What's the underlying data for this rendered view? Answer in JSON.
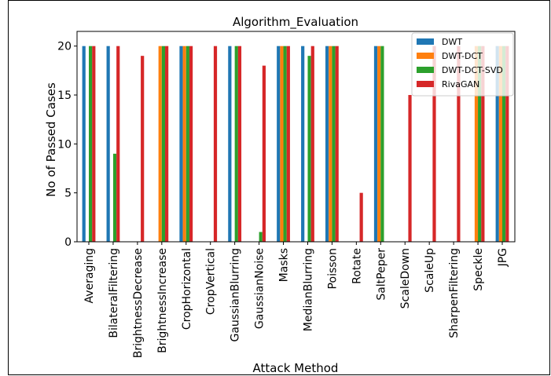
{
  "chart_data": {
    "type": "bar",
    "title": "Algorithm_Evaluation",
    "xlabel": "Attack Method",
    "ylabel": "No of Passed Cases",
    "ylim": [
      0,
      21.5
    ],
    "yticks": [
      0,
      5,
      10,
      15,
      20
    ],
    "grid": false,
    "legend_placement": "top-right",
    "categories": [
      "Averaging",
      "BilateralFiltering",
      "BrightnessDecrease",
      "BrightnessIncrease",
      "CropHorizontal",
      "CropVertical",
      "GaussianBlurring",
      "GaussianNoise",
      "Masks",
      "MedianBlurring",
      "Poisson",
      "Rotate",
      "SaltPeper",
      "ScaleDown",
      "ScaleUp",
      "SharpenFiltering",
      "Speckle",
      "JPG"
    ],
    "series": [
      {
        "name": "DWT",
        "color": "#1f77b4",
        "values": [
          20,
          20,
          0,
          0,
          20,
          0,
          20,
          0,
          20,
          20,
          20,
          0,
          20,
          0,
          0,
          0,
          0,
          20
        ]
      },
      {
        "name": "DWT-DCT",
        "color": "#ff7f0e",
        "values": [
          0,
          0,
          0,
          20,
          20,
          0,
          0,
          0,
          20,
          0,
          20,
          0,
          20,
          0,
          0,
          0,
          20,
          20
        ]
      },
      {
        "name": "DWT-DCT-SVD",
        "color": "#2ca02c",
        "values": [
          20,
          9,
          0,
          20,
          20,
          0,
          20,
          1,
          20,
          19,
          20,
          0,
          20,
          0,
          0,
          0,
          20,
          20
        ]
      },
      {
        "name": "RivaGAN",
        "color": "#d62728",
        "values": [
          20,
          20,
          19,
          20,
          20,
          20,
          20,
          18,
          20,
          20,
          20,
          5,
          0,
          15,
          20,
          20,
          20,
          20
        ]
      }
    ]
  }
}
